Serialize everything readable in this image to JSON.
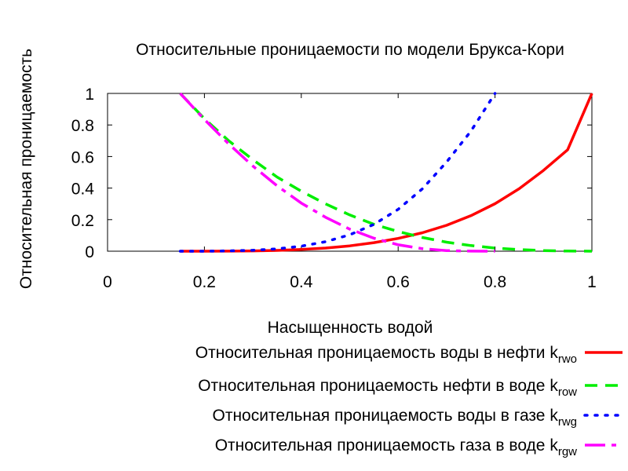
{
  "chart_data": {
    "type": "line",
    "title": "Относительные проницаемости по модели Брукса-Кори",
    "xlabel": "Насыщенность водой",
    "ylabel": "Относительная проницаемость",
    "xlim": [
      0,
      1
    ],
    "ylim": [
      0,
      1
    ],
    "xticks": [
      "0",
      "0.2",
      "0.4",
      "0.6",
      "0.8",
      "1"
    ],
    "yticks": [
      "0",
      "0.2",
      "0.4",
      "0.6",
      "0.8",
      "1"
    ],
    "grid": false,
    "legend_position": "below-plot-right",
    "series": [
      {
        "key": "krwo",
        "label": "Относительная проницаемость воды в нефти k",
        "subscript": "rwo",
        "color": "#ff0000",
        "style": "solid",
        "x": [
          0.15,
          0.2,
          0.25,
          0.3,
          0.35,
          0.4,
          0.45,
          0.5,
          0.55,
          0.6,
          0.65,
          0.7,
          0.75,
          0.8,
          0.85,
          0.9,
          0.95,
          1.0
        ],
        "y": [
          0,
          0.0001,
          0.0006,
          0.002,
          0.005,
          0.011,
          0.02,
          0.034,
          0.054,
          0.081,
          0.117,
          0.164,
          0.225,
          0.301,
          0.396,
          0.512,
          0.643,
          1.0
        ]
      },
      {
        "key": "krow",
        "label": "Относительная проницаемость нефти в воде k",
        "subscript": "row",
        "color": "#00ee00",
        "style": "dashed",
        "x": [
          0.15,
          0.2,
          0.25,
          0.3,
          0.35,
          0.4,
          0.45,
          0.5,
          0.55,
          0.6,
          0.65,
          0.7,
          0.75,
          0.8,
          0.85,
          0.9,
          0.95,
          1.0
        ],
        "y": [
          1.0,
          0.84,
          0.7,
          0.58,
          0.47,
          0.38,
          0.3,
          0.23,
          0.17,
          0.125,
          0.087,
          0.057,
          0.036,
          0.02,
          0.01,
          0.004,
          0.001,
          0
        ]
      },
      {
        "key": "krwg",
        "label": "Относительная проницаемость воды в газе k",
        "subscript": "rwg",
        "color": "#0000ff",
        "style": "dotted",
        "x": [
          0.15,
          0.2,
          0.25,
          0.3,
          0.35,
          0.4,
          0.45,
          0.5,
          0.55,
          0.6,
          0.65,
          0.7,
          0.75,
          0.8
        ],
        "y": [
          0,
          0.0002,
          0.002,
          0.006,
          0.015,
          0.032,
          0.06,
          0.104,
          0.17,
          0.265,
          0.395,
          0.565,
          0.76,
          1.0
        ]
      },
      {
        "key": "krgw",
        "label": "Относительная проницаемость газа в воде k",
        "subscript": "rgw",
        "color": "#ff00ff",
        "style": "dash-dot",
        "x": [
          0.15,
          0.2,
          0.25,
          0.3,
          0.35,
          0.4,
          0.45,
          0.5,
          0.55,
          0.6,
          0.65,
          0.7,
          0.75,
          0.8
        ],
        "y": [
          1.0,
          0.835,
          0.68,
          0.54,
          0.415,
          0.305,
          0.215,
          0.14,
          0.082,
          0.041,
          0.016,
          0.004,
          0.0005,
          0
        ]
      }
    ]
  }
}
